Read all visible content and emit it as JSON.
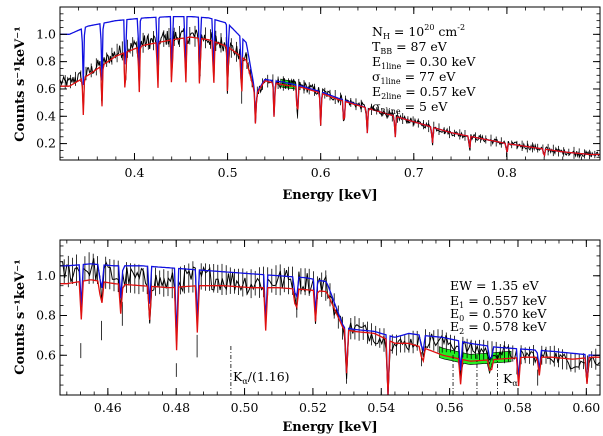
{
  "chart_data": [
    {
      "type": "line",
      "xlabel": "Energy [keV]",
      "ylabel": "Counts s⁻¹keV⁻¹",
      "xlim": [
        0.32,
        0.9
      ],
      "ylim": [
        0.08,
        1.2
      ],
      "xticks": [
        0.4,
        0.5,
        0.6,
        0.7,
        0.8
      ],
      "xtick_labels": [
        "0.4",
        "0.5",
        "0.6",
        "0.7",
        "0.8"
      ],
      "yticks": [
        0.2,
        0.4,
        0.6,
        0.8,
        1.0
      ],
      "ytick_labels": [
        "0.2",
        "0.4",
        "0.6",
        "0.8",
        "1.0"
      ],
      "annotations": [
        "N_H = 10^20 cm^-2",
        "T_BB = 87 eV",
        "E_1line = 0.30 keV",
        "σ_1line = 77 eV",
        "E_2line = 0.57 keV",
        "σ_2line = 5 eV"
      ],
      "series": [
        {
          "color": "#000000",
          "x": [
            0.33,
            0.35,
            0.38,
            0.41,
            0.44,
            0.46,
            0.48,
            0.5,
            0.52,
            0.53,
            0.54,
            0.56,
            0.58,
            0.6,
            0.62,
            0.65,
            0.68,
            0.71,
            0.74,
            0.77,
            0.8,
            0.83,
            0.86,
            0.89
          ],
          "values": [
            0.65,
            0.72,
            0.86,
            0.94,
            0.98,
            0.99,
            0.97,
            0.92,
            0.82,
            0.56,
            0.66,
            0.64,
            0.62,
            0.58,
            0.53,
            0.46,
            0.4,
            0.34,
            0.28,
            0.24,
            0.2,
            0.17,
            0.14,
            0.12
          ]
        },
        {
          "color": "#1010e0",
          "x": [
            0.33,
            0.35,
            0.38,
            0.41,
            0.44,
            0.46,
            0.48,
            0.5,
            0.52,
            0.53,
            0.54,
            0.56,
            0.58,
            0.6,
            0.62,
            0.65,
            0.68,
            0.71,
            0.74,
            0.77,
            0.8,
            0.83,
            0.86,
            0.89
          ],
          "values": [
            1.0,
            1.06,
            1.1,
            1.12,
            1.13,
            1.13,
            1.12,
            1.08,
            0.94,
            0.56,
            0.67,
            0.65,
            0.62,
            0.58,
            0.53,
            0.46,
            0.4,
            0.34,
            0.28,
            0.24,
            0.2,
            0.17,
            0.14,
            0.12
          ]
        },
        {
          "color": "#e01010",
          "x": [
            0.33,
            0.35,
            0.38,
            0.41,
            0.44,
            0.46,
            0.48,
            0.5,
            0.52,
            0.53,
            0.54,
            0.56,
            0.58,
            0.6,
            0.62,
            0.65,
            0.68,
            0.71,
            0.74,
            0.77,
            0.8,
            0.83,
            0.86,
            0.89
          ],
          "values": [
            0.62,
            0.7,
            0.84,
            0.92,
            0.96,
            0.98,
            0.96,
            0.91,
            0.81,
            0.55,
            0.66,
            0.63,
            0.61,
            0.57,
            0.52,
            0.46,
            0.4,
            0.34,
            0.28,
            0.24,
            0.2,
            0.17,
            0.14,
            0.12
          ]
        }
      ],
      "absorption_lines_keV": [
        0.345,
        0.365,
        0.39,
        0.405,
        0.425,
        0.44,
        0.455,
        0.47,
        0.485,
        0.5,
        0.515,
        0.53,
        0.55,
        0.575,
        0.6,
        0.625,
        0.65,
        0.68,
        0.72,
        0.76,
        0.8,
        0.84
      ],
      "green_fill_range_keV": [
        0.557,
        0.578
      ]
    },
    {
      "type": "line",
      "xlabel": "Energy [keV]",
      "ylabel": "Counts s⁻¹keV⁻¹",
      "xlim": [
        0.446,
        0.604
      ],
      "ylim": [
        0.4,
        1.18
      ],
      "xticks": [
        0.46,
        0.48,
        0.5,
        0.52,
        0.54,
        0.56,
        0.58,
        0.6
      ],
      "xtick_labels": [
        "0.46",
        "0.48",
        "0.50",
        "0.52",
        "0.54",
        "0.56",
        "0.58",
        "0.60"
      ],
      "yticks": [
        0.6,
        0.8,
        1.0
      ],
      "ytick_labels": [
        "0.6",
        "0.8",
        "1.0"
      ],
      "annotations": [
        "EW = 1.35 eV",
        "E_1 = 0.557 keV",
        "E_0 = 0.570 keV",
        "E_2 = 0.578 keV",
        "K_α/(1.16)",
        "K_α"
      ],
      "series": [
        {
          "color": "#000000",
          "x": [
            0.448,
            0.455,
            0.462,
            0.47,
            0.478,
            0.486,
            0.494,
            0.502,
            0.51,
            0.518,
            0.524,
            0.529,
            0.532,
            0.538,
            0.544,
            0.548,
            0.552,
            0.558,
            0.566,
            0.574,
            0.582,
            0.59,
            0.596,
            0.602
          ],
          "values": [
            1.02,
            1.04,
            1.0,
            0.98,
            0.96,
            1.0,
            0.98,
            0.96,
            0.98,
            0.97,
            0.95,
            0.72,
            0.74,
            0.7,
            0.65,
            0.66,
            0.68,
            0.67,
            0.63,
            0.62,
            0.6,
            0.6,
            0.56,
            0.58
          ]
        },
        {
          "color": "#1010e0",
          "x": [
            0.448,
            0.455,
            0.462,
            0.47,
            0.478,
            0.486,
            0.494,
            0.502,
            0.51,
            0.518,
            0.524,
            0.529,
            0.532,
            0.538,
            0.544,
            0.548,
            0.552,
            0.558,
            0.566,
            0.574,
            0.582,
            0.59,
            0.596,
            0.602
          ],
          "values": [
            1.05,
            1.06,
            1.05,
            1.05,
            1.04,
            1.03,
            1.02,
            1.01,
            1.0,
            0.99,
            0.97,
            0.74,
            0.73,
            0.72,
            0.69,
            0.71,
            0.7,
            0.69,
            0.66,
            0.64,
            0.63,
            0.62,
            0.61,
            0.6
          ]
        },
        {
          "color": "#e01010",
          "x": [
            0.448,
            0.455,
            0.462,
            0.47,
            0.478,
            0.486,
            0.494,
            0.502,
            0.51,
            0.518,
            0.524,
            0.529,
            0.532,
            0.538,
            0.544,
            0.548,
            0.552,
            0.558,
            0.566,
            0.574,
            0.582,
            0.59,
            0.596,
            0.602
          ],
          "values": [
            0.96,
            0.98,
            0.96,
            0.95,
            0.94,
            0.95,
            0.95,
            0.94,
            0.94,
            0.93,
            0.92,
            0.73,
            0.72,
            0.71,
            0.66,
            0.66,
            0.64,
            0.6,
            0.57,
            0.58,
            0.59,
            0.59,
            0.58,
            0.59
          ]
        }
      ],
      "absorption_lines_keV": [
        0.452,
        0.458,
        0.464,
        0.472,
        0.48,
        0.486,
        0.506,
        0.515,
        0.521,
        0.53,
        0.542,
        0.552,
        0.563,
        0.572,
        0.58,
        0.586,
        0.6
      ],
      "dashed_markers_keV": [
        0.496,
        0.561,
        0.568,
        0.574
      ],
      "green_fill_range_keV": [
        0.557,
        0.578
      ]
    }
  ]
}
